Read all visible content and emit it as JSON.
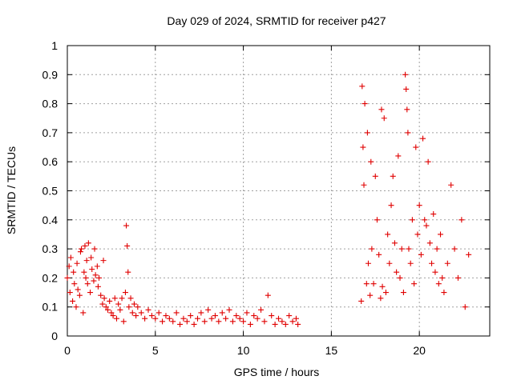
{
  "chart_data": {
    "type": "scatter",
    "title": "Day 029 of 2024, SRMTID for receiver p427",
    "xlabel": "GPS time / hours",
    "ylabel": "SRMTID / TECUs",
    "xlim": [
      0,
      24
    ],
    "ylim": [
      0,
      1
    ],
    "xticks": [
      0,
      5,
      10,
      15,
      20
    ],
    "xtick_labels": [
      "0",
      "5",
      "10",
      "15",
      "20"
    ],
    "yticks": [
      0,
      0.1,
      0.2,
      0.3,
      0.4,
      0.5,
      0.6,
      0.7,
      0.8,
      0.9,
      1
    ],
    "ytick_labels": [
      "0",
      "0.1",
      "0.2",
      "0.3",
      "0.4",
      "0.5",
      "0.6",
      "0.7",
      "0.8",
      "0.9",
      "1"
    ],
    "grid": true,
    "marker": "+",
    "color": "#e00000",
    "series": [
      {
        "name": "SRMTID",
        "x": [
          0.0,
          0.1,
          0.15,
          0.2,
          0.3,
          0.35,
          0.4,
          0.5,
          0.55,
          0.6,
          0.7,
          0.75,
          0.8,
          0.9,
          0.95,
          1.0,
          1.05,
          1.1,
          1.15,
          1.2,
          1.3,
          1.35,
          1.4,
          1.5,
          1.55,
          1.6,
          1.7,
          1.75,
          1.8,
          1.9,
          2.0,
          2.05,
          2.1,
          2.2,
          2.3,
          2.4,
          2.5,
          2.6,
          2.7,
          2.8,
          2.9,
          3.0,
          3.1,
          3.2,
          3.3,
          3.35,
          3.4,
          3.45,
          3.5,
          3.6,
          3.7,
          3.8,
          3.9,
          4.0,
          4.2,
          4.4,
          4.6,
          4.8,
          5.0,
          5.2,
          5.4,
          5.6,
          5.8,
          6.0,
          6.2,
          6.4,
          6.6,
          6.8,
          7.0,
          7.2,
          7.4,
          7.6,
          7.8,
          8.0,
          8.2,
          8.4,
          8.6,
          8.8,
          9.0,
          9.2,
          9.4,
          9.6,
          9.8,
          10.0,
          10.2,
          10.4,
          10.6,
          10.8,
          11.0,
          11.2,
          11.4,
          11.6,
          11.8,
          12.0,
          12.2,
          12.4,
          12.6,
          12.8,
          13.0,
          13.1,
          16.7,
          16.75,
          16.8,
          16.85,
          16.9,
          17.0,
          17.05,
          17.1,
          17.2,
          17.25,
          17.3,
          17.4,
          17.5,
          17.6,
          17.7,
          17.8,
          17.85,
          17.9,
          18.0,
          18.1,
          18.2,
          18.3,
          18.4,
          18.5,
          18.6,
          18.7,
          18.8,
          18.9,
          19.0,
          19.1,
          19.2,
          19.25,
          19.3,
          19.35,
          19.4,
          19.5,
          19.6,
          19.7,
          19.8,
          19.9,
          20.0,
          20.1,
          20.2,
          20.3,
          20.4,
          20.5,
          20.6,
          20.7,
          20.8,
          20.9,
          21.0,
          21.1,
          21.2,
          21.3,
          21.4,
          21.6,
          21.8,
          22.0,
          22.2,
          22.4,
          22.6,
          22.8
        ],
        "values": [
          0.2,
          0.24,
          0.15,
          0.27,
          0.12,
          0.22,
          0.18,
          0.1,
          0.25,
          0.16,
          0.14,
          0.29,
          0.3,
          0.08,
          0.22,
          0.31,
          0.2,
          0.26,
          0.18,
          0.32,
          0.15,
          0.27,
          0.23,
          0.19,
          0.3,
          0.21,
          0.24,
          0.17,
          0.2,
          0.14,
          0.11,
          0.26,
          0.13,
          0.1,
          0.09,
          0.12,
          0.08,
          0.07,
          0.13,
          0.06,
          0.11,
          0.09,
          0.13,
          0.05,
          0.15,
          0.38,
          0.31,
          0.22,
          0.1,
          0.13,
          0.08,
          0.11,
          0.07,
          0.1,
          0.08,
          0.06,
          0.09,
          0.07,
          0.06,
          0.08,
          0.05,
          0.07,
          0.06,
          0.05,
          0.08,
          0.04,
          0.06,
          0.05,
          0.07,
          0.04,
          0.06,
          0.08,
          0.05,
          0.09,
          0.06,
          0.07,
          0.05,
          0.08,
          0.06,
          0.09,
          0.05,
          0.07,
          0.06,
          0.05,
          0.08,
          0.04,
          0.07,
          0.06,
          0.09,
          0.05,
          0.14,
          0.07,
          0.04,
          0.06,
          0.05,
          0.04,
          0.07,
          0.05,
          0.06,
          0.04,
          0.12,
          0.86,
          0.65,
          0.52,
          0.8,
          0.18,
          0.7,
          0.25,
          0.14,
          0.6,
          0.3,
          0.18,
          0.55,
          0.4,
          0.28,
          0.13,
          0.78,
          0.17,
          0.75,
          0.15,
          0.35,
          0.25,
          0.45,
          0.55,
          0.32,
          0.22,
          0.62,
          0.2,
          0.3,
          0.15,
          0.9,
          0.85,
          0.78,
          0.7,
          0.3,
          0.25,
          0.4,
          0.18,
          0.65,
          0.35,
          0.45,
          0.28,
          0.68,
          0.4,
          0.38,
          0.6,
          0.32,
          0.25,
          0.42,
          0.22,
          0.3,
          0.18,
          0.35,
          0.2,
          0.15,
          0.25,
          0.52,
          0.3,
          0.2,
          0.4,
          0.1,
          0.28
        ]
      }
    ]
  }
}
